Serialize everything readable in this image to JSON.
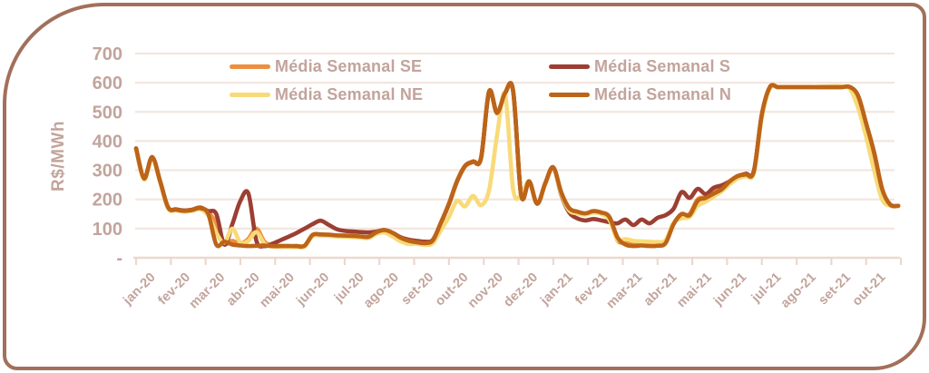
{
  "frame": {
    "border_color": "#a2705a",
    "background": "#ffffff"
  },
  "chart_data": {
    "type": "line",
    "title": "",
    "ylabel": "R$/MWh",
    "ylim": [
      0,
      700
    ],
    "grid": "horizontal gridlines every 100, light pink on white",
    "legend_position": "top, two columns",
    "label_color": "#c2a49c",
    "grid_color": "#f2e6df",
    "axis_color": "#ebd8ce",
    "x_unit": "weeks (weekly averages), 96 points spanning jan-20 to out-21",
    "x_categories": [
      "jan-20",
      "fev-20",
      "mar-20",
      "abr-20",
      "mai-20",
      "jun-20",
      "jul-20",
      "ago-20",
      "set-20",
      "out-20",
      "nov-20",
      "dez-20",
      "jan-21",
      "fev-21",
      "mar-21",
      "abr-21",
      "mai-21",
      "jun-21",
      "jul-21",
      "ago-21",
      "set-21",
      "out-21"
    ],
    "y_ticks": [
      {
        "value": 700,
        "label": "700"
      },
      {
        "value": 600,
        "label": "600"
      },
      {
        "value": 500,
        "label": "500"
      },
      {
        "value": 400,
        "label": "400"
      },
      {
        "value": 300,
        "label": "300"
      },
      {
        "value": 200,
        "label": "200"
      },
      {
        "value": 100,
        "label": "100"
      },
      {
        "value": 0,
        "label": "-"
      }
    ],
    "series": [
      {
        "name": "Média Semanal SE",
        "color": "#ed8f41",
        "values": [
          375,
          272,
          345,
          262,
          172,
          165,
          161,
          164,
          170,
          155,
          118,
          50,
          58,
          48,
          65,
          100,
          55,
          42,
          40,
          40,
          40,
          41,
          77,
          79,
          78,
          76,
          75,
          74,
          72,
          71,
          87,
          94,
          84,
          67,
          57,
          52,
          49,
          59,
          118,
          183,
          260,
          313,
          328,
          340,
          568,
          495,
          563,
          570,
          215,
          260,
          185,
          253,
          308,
          222,
          168,
          156,
          150,
          158,
          153,
          138,
          60,
          52,
          48,
          50,
          48,
          47,
          55,
          118,
          145,
          150,
          200,
          208,
          225,
          240,
          262,
          280,
          286,
          295,
          490,
          583,
          585,
          585,
          585,
          585,
          585,
          585,
          585,
          585,
          585,
          585,
          555,
          460,
          360,
          235,
          182,
          178
        ]
      },
      {
        "name": "Média Semanal S",
        "color": "#9c3e33",
        "values": [
          375,
          272,
          345,
          262,
          172,
          166,
          162,
          165,
          172,
          160,
          150,
          45,
          115,
          195,
          220,
          58,
          40,
          48,
          60,
          72,
          85,
          100,
          115,
          127,
          113,
          98,
          92,
          90,
          88,
          87,
          90,
          95,
          85,
          70,
          62,
          58,
          55,
          62,
          120,
          185,
          262,
          315,
          330,
          342,
          570,
          497,
          565,
          572,
          215,
          262,
          185,
          255,
          310,
          215,
          155,
          135,
          128,
          133,
          128,
          122,
          118,
          131,
          112,
          131,
          118,
          137,
          146,
          168,
          225,
          205,
          236,
          218,
          240,
          248,
          262,
          280,
          288,
          297,
          490,
          585,
          585,
          585,
          585,
          585,
          585,
          585,
          585,
          585,
          585,
          585,
          555,
          460,
          360,
          235,
          182,
          178
        ]
      },
      {
        "name": "Média Semanal NE",
        "color": "#f8da78",
        "values": [
          372,
          268,
          342,
          258,
          169,
          162,
          158,
          161,
          166,
          145,
          85,
          52,
          100,
          52,
          58,
          88,
          48,
          38,
          37,
          37,
          37,
          38,
          74,
          76,
          75,
          73,
          72,
          71,
          69,
          68,
          82,
          86,
          72,
          56,
          47,
          48,
          44,
          50,
          95,
          140,
          195,
          176,
          212,
          180,
          232,
          420,
          560,
          235,
          215,
          262,
          185,
          255,
          308,
          218,
          162,
          152,
          148,
          155,
          150,
          130,
          62,
          64,
          58,
          56,
          55,
          54,
          60,
          120,
          135,
          140,
          178,
          192,
          210,
          228,
          252,
          272,
          280,
          290,
          480,
          580,
          585,
          585,
          585,
          585,
          585,
          586,
          587,
          588,
          587,
          578,
          515,
          415,
          300,
          200,
          178,
          177
        ]
      },
      {
        "name": "Média Semanal N",
        "color": "#bc6418",
        "values": [
          375,
          272,
          345,
          262,
          172,
          165,
          161,
          164,
          170,
          150,
          45,
          55,
          45,
          42,
          40,
          41,
          42,
          40,
          40,
          40,
          40,
          41,
          78,
          80,
          79,
          77,
          76,
          75,
          73,
          72,
          88,
          95,
          85,
          68,
          58,
          53,
          50,
          60,
          120,
          185,
          262,
          315,
          330,
          342,
          570,
          497,
          565,
          572,
          215,
          262,
          185,
          255,
          310,
          224,
          170,
          158,
          152,
          160,
          155,
          140,
          70,
          45,
          40,
          42,
          40,
          41,
          50,
          115,
          150,
          146,
          195,
          205,
          220,
          235,
          262,
          280,
          286,
          295,
          490,
          585,
          585,
          585,
          585,
          585,
          585,
          585,
          585,
          585,
          585,
          585,
          555,
          460,
          360,
          235,
          182,
          178
        ]
      }
    ]
  }
}
